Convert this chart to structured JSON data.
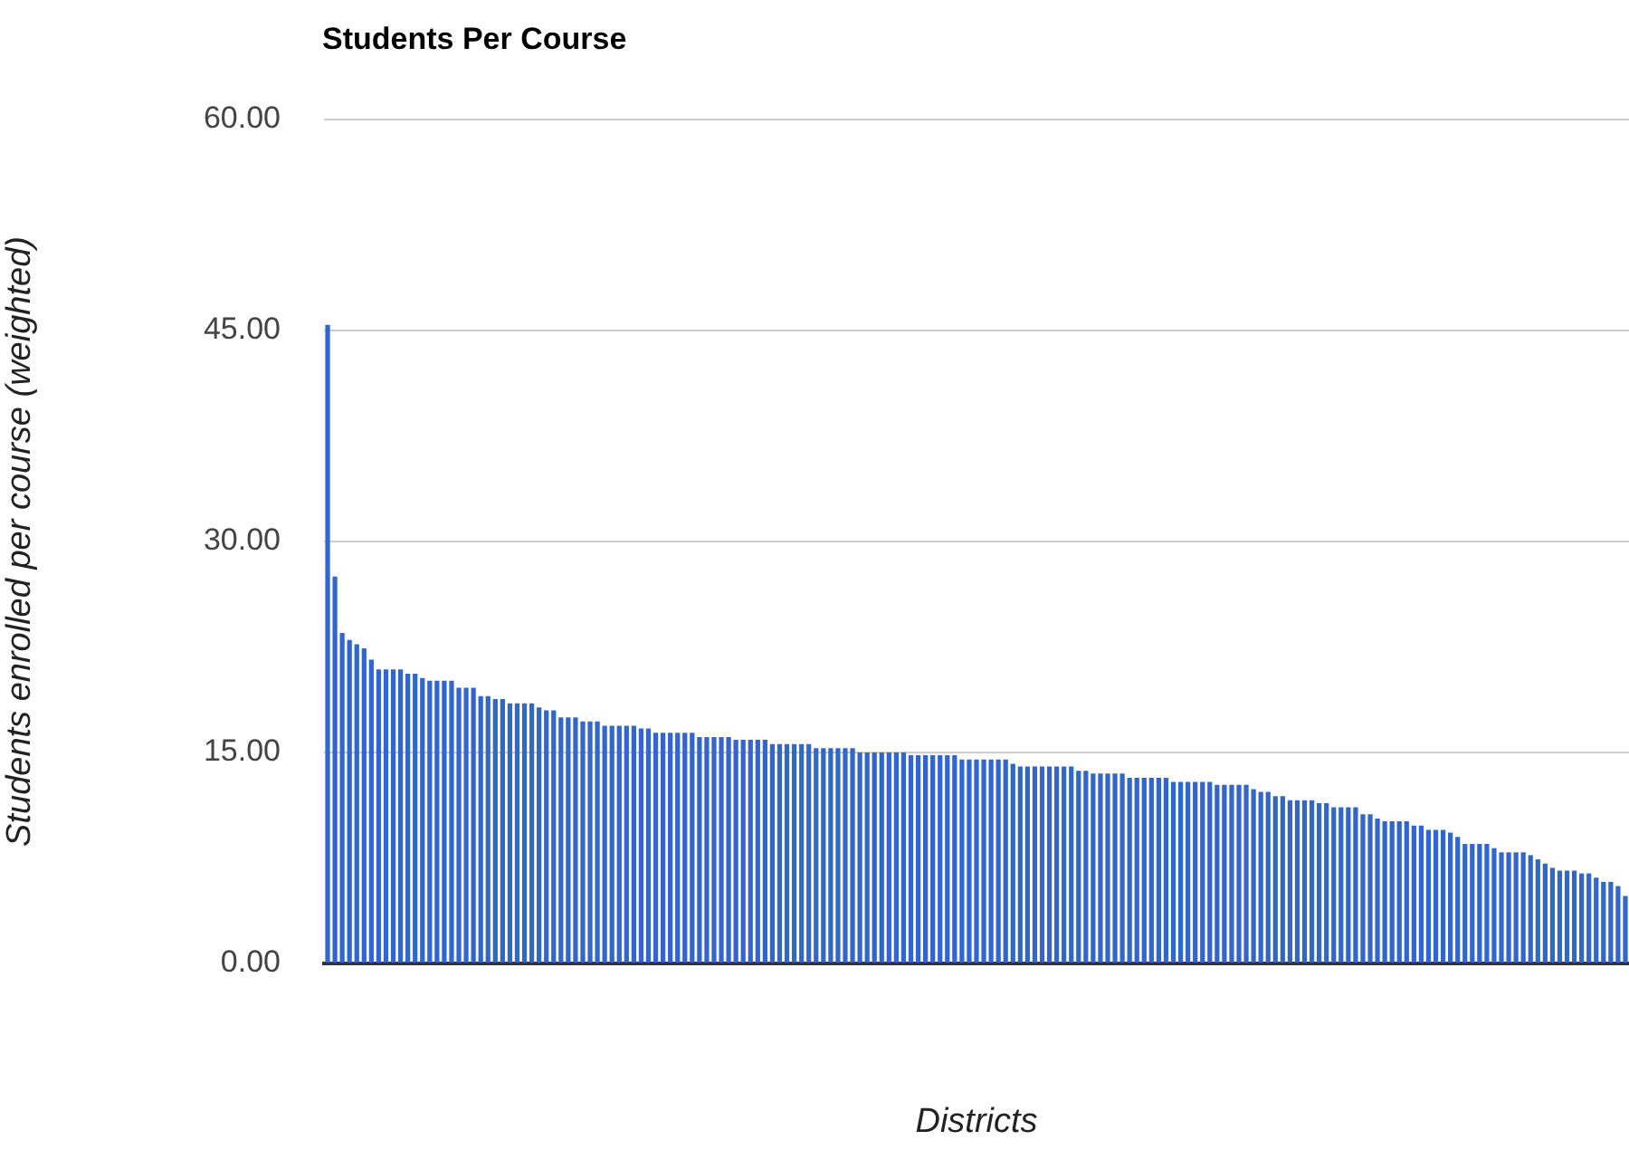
{
  "chart_data": {
    "type": "bar",
    "title": "Students Per Course",
    "xlabel": "Districts",
    "ylabel": "Students enrolled per course (weighted)",
    "categories": [
      null,
      null,
      null,
      null,
      null,
      null,
      null,
      null,
      null,
      null,
      null,
      null,
      null,
      null,
      null,
      null,
      null,
      null,
      null,
      null,
      null,
      null,
      null,
      null,
      null,
      null,
      null,
      null,
      null,
      null,
      null,
      null,
      null,
      null,
      null,
      null,
      null,
      null,
      null,
      null,
      null,
      null,
      null,
      null,
      null,
      null,
      null,
      null,
      null,
      null,
      null,
      null,
      null,
      null,
      null,
      null,
      null,
      null,
      null,
      null,
      null,
      null,
      null,
      null,
      null,
      null,
      null,
      null,
      null,
      null,
      null,
      null,
      null,
      null,
      null,
      null,
      null,
      null,
      null,
      null,
      null,
      null,
      null,
      null,
      null,
      null,
      null,
      null,
      null,
      null,
      null,
      null,
      null,
      null,
      null,
      null,
      null,
      null,
      null,
      null,
      null,
      null,
      null,
      null,
      null,
      null,
      null,
      null,
      null,
      null,
      null,
      null,
      null,
      null,
      null,
      null,
      null,
      null,
      null,
      null,
      null,
      null,
      null,
      null,
      null,
      null,
      null,
      null,
      null,
      null,
      null,
      null,
      null,
      null,
      null,
      null,
      null,
      null,
      null,
      null,
      null,
      null,
      null,
      null,
      null,
      null,
      null,
      null,
      null,
      null,
      null,
      null,
      null,
      null,
      null,
      null,
      null,
      null,
      null,
      null,
      null,
      null,
      null,
      null,
      null,
      null,
      null,
      null,
      null,
      null,
      null,
      null,
      null,
      null,
      null,
      null,
      null,
      null,
      null
    ],
    "values": [
      45.4,
      27.5,
      23.5,
      23.0,
      22.7,
      22.4,
      21.6,
      20.9,
      20.9,
      20.9,
      20.9,
      20.6,
      20.6,
      20.3,
      20.1,
      20.1,
      20.1,
      20.1,
      19.6,
      19.6,
      19.6,
      19.0,
      19.0,
      18.8,
      18.8,
      18.5,
      18.5,
      18.5,
      18.5,
      18.2,
      18.0,
      18.0,
      17.5,
      17.5,
      17.5,
      17.2,
      17.2,
      17.2,
      16.9,
      16.9,
      16.9,
      16.9,
      16.9,
      16.7,
      16.7,
      16.4,
      16.4,
      16.4,
      16.4,
      16.4,
      16.4,
      16.1,
      16.1,
      16.1,
      16.1,
      16.1,
      15.9,
      15.9,
      15.9,
      15.9,
      15.9,
      15.6,
      15.6,
      15.6,
      15.6,
      15.6,
      15.6,
      15.3,
      15.3,
      15.3,
      15.3,
      15.3,
      15.3,
      15.0,
      15.0,
      15.0,
      15.0,
      15.0,
      15.0,
      15.0,
      14.8,
      14.8,
      14.8,
      14.8,
      14.8,
      14.8,
      14.8,
      14.5,
      14.5,
      14.5,
      14.5,
      14.5,
      14.5,
      14.5,
      14.2,
      14.0,
      14.0,
      14.0,
      14.0,
      14.0,
      14.0,
      14.0,
      14.0,
      13.7,
      13.7,
      13.5,
      13.5,
      13.5,
      13.5,
      13.5,
      13.2,
      13.2,
      13.2,
      13.2,
      13.2,
      13.2,
      12.9,
      12.9,
      12.9,
      12.9,
      12.9,
      12.9,
      12.7,
      12.7,
      12.7,
      12.7,
      12.7,
      12.4,
      12.2,
      12.2,
      11.9,
      11.9,
      11.6,
      11.6,
      11.6,
      11.6,
      11.4,
      11.4,
      11.1,
      11.1,
      11.1,
      11.1,
      10.6,
      10.6,
      10.3,
      10.1,
      10.1,
      10.1,
      10.1,
      9.8,
      9.8,
      9.5,
      9.5,
      9.5,
      9.3,
      9.0,
      8.5,
      8.5,
      8.5,
      8.5,
      8.2,
      7.9,
      7.9,
      7.9,
      7.9,
      7.7,
      7.4,
      7.1,
      6.8,
      6.6,
      6.6,
      6.6,
      6.4,
      6.4,
      6.1,
      5.8,
      5.8,
      5.5,
      4.8
    ],
    "color": "#3366cc",
    "ylim": [
      0,
      60
    ],
    "yticks": [
      {
        "value": 0,
        "label": "0.00"
      },
      {
        "value": 15,
        "label": "15.00"
      },
      {
        "value": 30,
        "label": "30.00"
      },
      {
        "value": 45,
        "label": "45.00"
      },
      {
        "value": 60,
        "label": "60.00"
      }
    ],
    "grid": "y",
    "legend": false,
    "tick_labels": "y"
  }
}
